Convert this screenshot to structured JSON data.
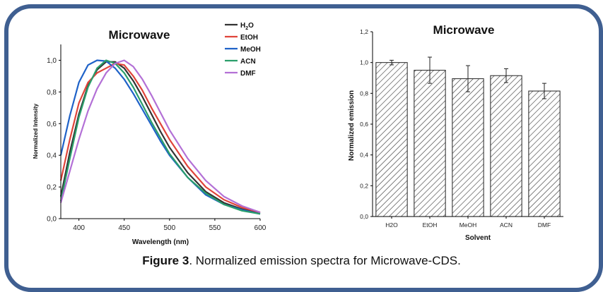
{
  "colors": {
    "frame": "#3f5f91",
    "bar_fill": "#a6a6a6"
  },
  "caption": {
    "label": "Figure 3",
    "text": ". Normalized emission spectra for Microwave-CDS."
  },
  "chart_data": [
    {
      "type": "line",
      "title": "Microwave",
      "xlabel": "Wavelength (nm)",
      "ylabel": "Normalized Intensity",
      "xlim": [
        380,
        600
      ],
      "ylim": [
        0,
        1.1
      ],
      "x_ticks": [
        400,
        450,
        500,
        550,
        600
      ],
      "y_ticks": [
        "0,0",
        "0,2",
        "0,4",
        "0,6",
        "0,8",
        "1,0"
      ],
      "legend_position": "top-right",
      "x": [
        380,
        390,
        400,
        410,
        420,
        430,
        440,
        450,
        460,
        470,
        480,
        490,
        500,
        520,
        540,
        560,
        580,
        600
      ],
      "series": [
        {
          "name": "H2O",
          "color": "#333333",
          "values": [
            0.14,
            0.42,
            0.66,
            0.84,
            0.94,
            0.99,
            0.99,
            0.95,
            0.87,
            0.77,
            0.66,
            0.55,
            0.45,
            0.29,
            0.17,
            0.1,
            0.06,
            0.035
          ]
        },
        {
          "name": "EtOH",
          "color": "#e0443a",
          "values": [
            0.24,
            0.5,
            0.73,
            0.86,
            0.92,
            0.95,
            0.98,
            0.97,
            0.9,
            0.81,
            0.7,
            0.6,
            0.5,
            0.33,
            0.2,
            0.12,
            0.07,
            0.04
          ]
        },
        {
          "name": "MeOH",
          "color": "#1f62c8",
          "values": [
            0.4,
            0.65,
            0.86,
            0.97,
            1.0,
            0.995,
            0.95,
            0.88,
            0.79,
            0.69,
            0.59,
            0.49,
            0.4,
            0.26,
            0.15,
            0.09,
            0.055,
            0.03
          ]
        },
        {
          "name": "ACN",
          "color": "#2a9e6b",
          "values": [
            0.11,
            0.38,
            0.64,
            0.83,
            0.95,
            1.0,
            0.98,
            0.92,
            0.83,
            0.72,
            0.61,
            0.51,
            0.41,
            0.26,
            0.16,
            0.09,
            0.05,
            0.03
          ]
        },
        {
          "name": "DMF",
          "color": "#b370d6",
          "values": [
            0.1,
            0.3,
            0.5,
            0.68,
            0.82,
            0.92,
            0.98,
            1.0,
            0.96,
            0.88,
            0.78,
            0.67,
            0.56,
            0.38,
            0.24,
            0.14,
            0.08,
            0.04
          ]
        }
      ],
      "legend_labels": [
        {
          "main": "H",
          "sub": "2",
          "tail": "O"
        },
        {
          "main": "EtOH"
        },
        {
          "main": "MeOH"
        },
        {
          "main": "ACN"
        },
        {
          "main": "DMF"
        }
      ]
    },
    {
      "type": "bar",
      "title": "Microwave",
      "xlabel": "Solvent",
      "ylabel": "Normalized emission",
      "ylim": [
        0,
        1.2
      ],
      "y_ticks": [
        "0,0",
        "0,2",
        "0,4",
        "0,6",
        "0,8",
        "1,0",
        "1,2"
      ],
      "categories": [
        "H2O",
        "EtOH",
        "MeOH",
        "ACN",
        "DMF"
      ],
      "values": [
        1.0,
        0.95,
        0.895,
        0.915,
        0.815
      ],
      "errors": [
        0.015,
        0.085,
        0.085,
        0.045,
        0.05
      ],
      "pattern": "diagonal-hatch"
    }
  ]
}
